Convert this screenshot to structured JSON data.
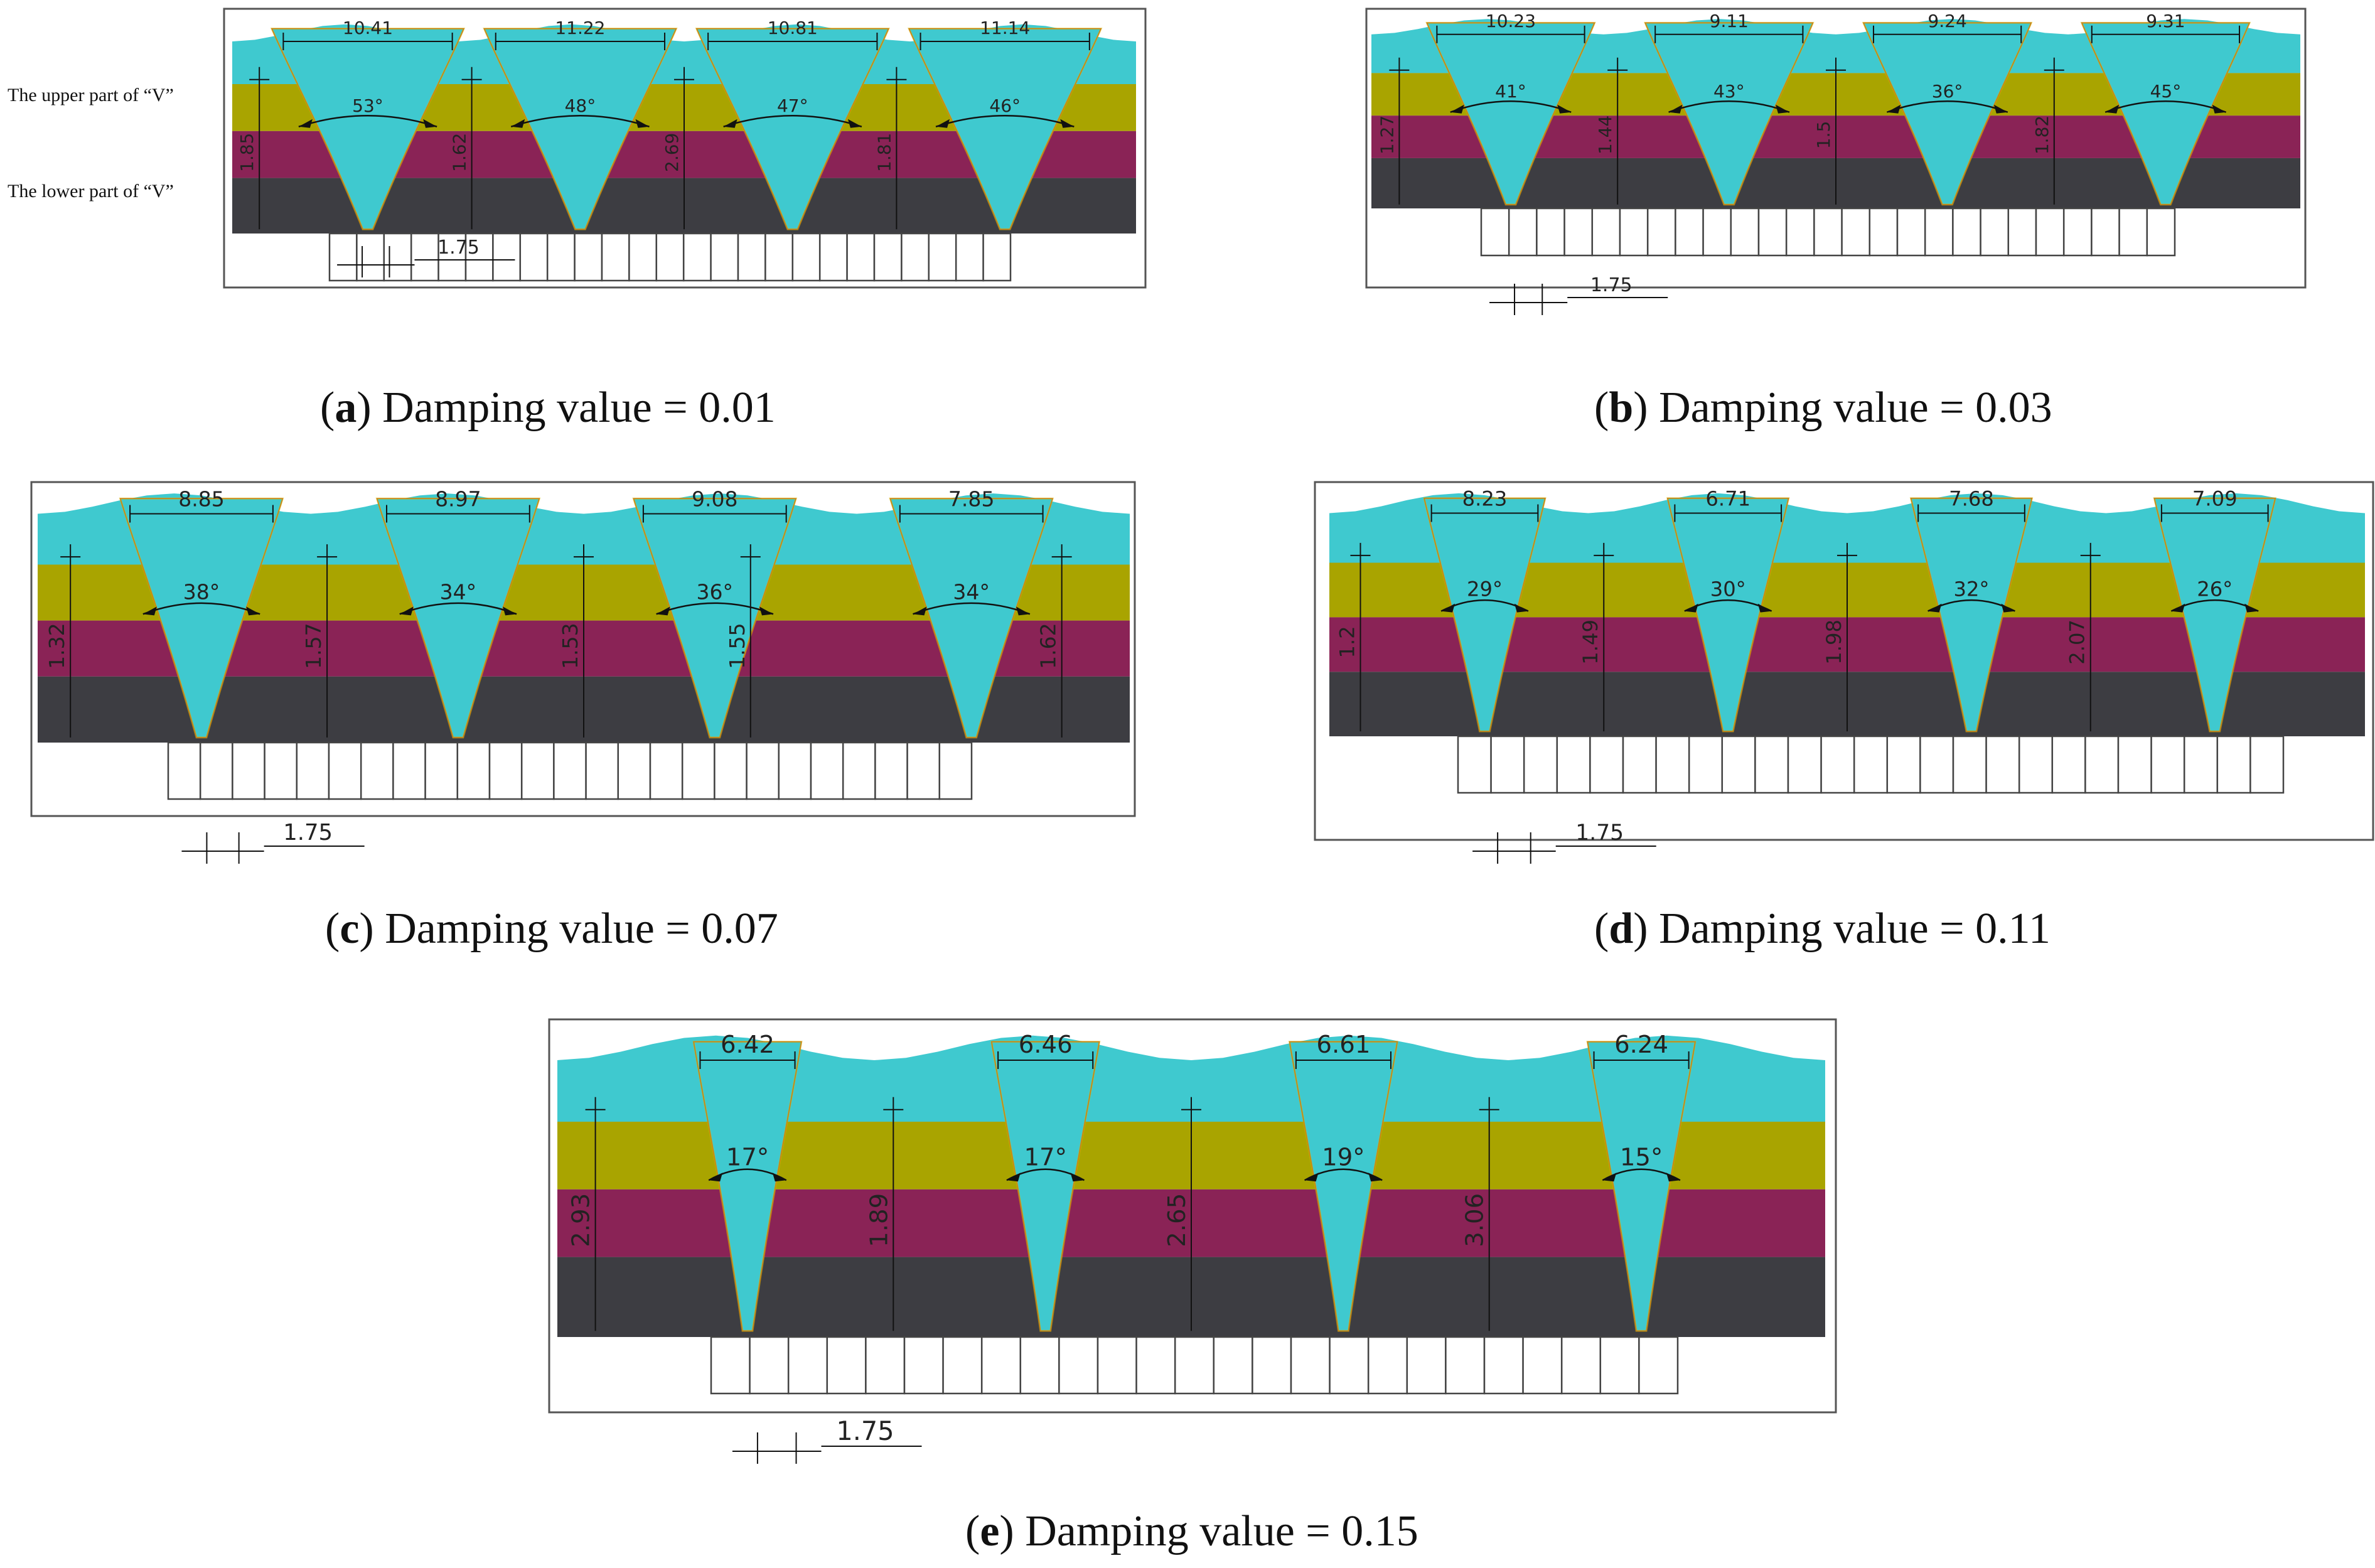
{
  "colors": {
    "cyan": "#3fc9cf",
    "olive": "#a9a400",
    "maroon": "#8a2356",
    "dark": "#3d3d42",
    "frame": "#333333"
  },
  "annotations": {
    "upper_v": "The upper part of “V”",
    "lower_v": "The lower part of “V”"
  },
  "panels": [
    {
      "id": "a",
      "caption_letter": "a",
      "caption_text": "Damping value = 0.01",
      "widths": [
        "10.41",
        "11.22",
        "10.81",
        "11.14"
      ],
      "angles": [
        "53°",
        "48°",
        "47°",
        "46°"
      ],
      "heights": [
        "1.85",
        "1.62",
        "2.69",
        "1.81"
      ],
      "spacing": "1.75"
    },
    {
      "id": "b",
      "caption_letter": "b",
      "caption_text": "Damping value = 0.03",
      "widths": [
        "10.23",
        "9.11",
        "9.24",
        "9.31"
      ],
      "angles": [
        "41°",
        "43°",
        "36°",
        "45°"
      ],
      "heights": [
        "1.27",
        "1.44",
        "1.5",
        "1.82"
      ],
      "spacing": "1.75"
    },
    {
      "id": "c",
      "caption_letter": "c",
      "caption_text": "Damping value = 0.07",
      "widths": [
        "8.85",
        "8.97",
        "9.08",
        "7.85"
      ],
      "angles": [
        "38°",
        "34°",
        "36°",
        "34°"
      ],
      "heights": [
        "1.32",
        "1.57",
        "1.53",
        "1.55",
        "1.62"
      ],
      "spacing": "1.75"
    },
    {
      "id": "d",
      "caption_letter": "d",
      "caption_text": "Damping value = 0.11",
      "widths": [
        "8.23",
        "6.71",
        "7.68",
        "7.09"
      ],
      "angles": [
        "29°",
        "30°",
        "32°",
        "26°"
      ],
      "heights": [
        "1.2",
        "1.49",
        "1.98",
        "2.07"
      ],
      "spacing": "1.75"
    },
    {
      "id": "e",
      "caption_letter": "e",
      "caption_text": "Damping value = 0.15",
      "widths": [
        "6.42",
        "6.46",
        "6.61",
        "6.24"
      ],
      "angles": [
        "17°",
        "17°",
        "19°",
        "15°"
      ],
      "heights": [
        "2.93",
        "1.89",
        "2.65",
        "3.06"
      ],
      "spacing": "1.75"
    }
  ]
}
